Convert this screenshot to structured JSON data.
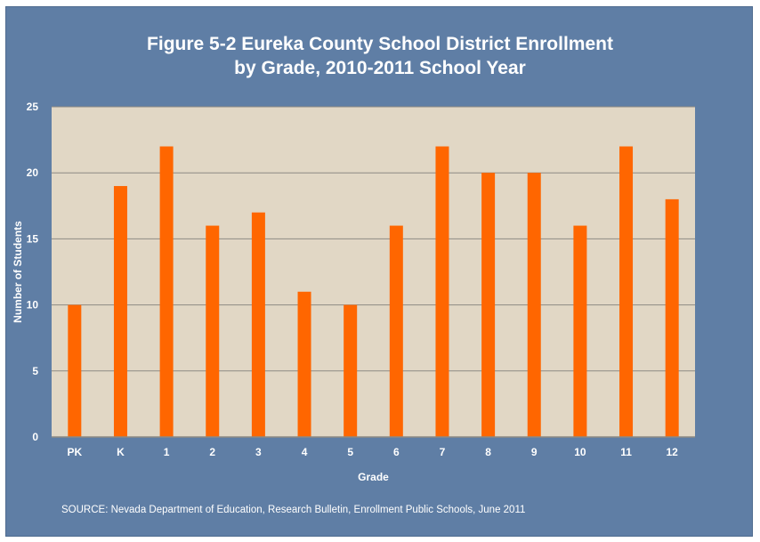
{
  "chart_data": {
    "type": "bar",
    "title_line1": "Figure 5-2 Eureka County School District Enrollment",
    "title_line2": "by Grade, 2010-2011 School Year",
    "xlabel": "Grade",
    "ylabel": "Number of Students",
    "ylim": [
      0,
      25
    ],
    "yticks": [
      "0",
      "5",
      "10",
      "15",
      "20",
      "25"
    ],
    "categories": [
      "PK",
      "K",
      "1",
      "2",
      "3",
      "4",
      "5",
      "6",
      "7",
      "8",
      "9",
      "10",
      "11",
      "12"
    ],
    "values": [
      10,
      19,
      22,
      16,
      17,
      11,
      10,
      16,
      22,
      20,
      20,
      16,
      22,
      18
    ],
    "grid": true,
    "colors": {
      "bar": "#ff6600",
      "plot_background": "#e1d7c5",
      "frame_background": "#5f7ea5",
      "text": "#ffffff",
      "gridline": "#8d8a84"
    }
  },
  "source": "SOURCE: Nevada Department of Education, Research Bulletin, Enrollment Public Schools, June 2011"
}
